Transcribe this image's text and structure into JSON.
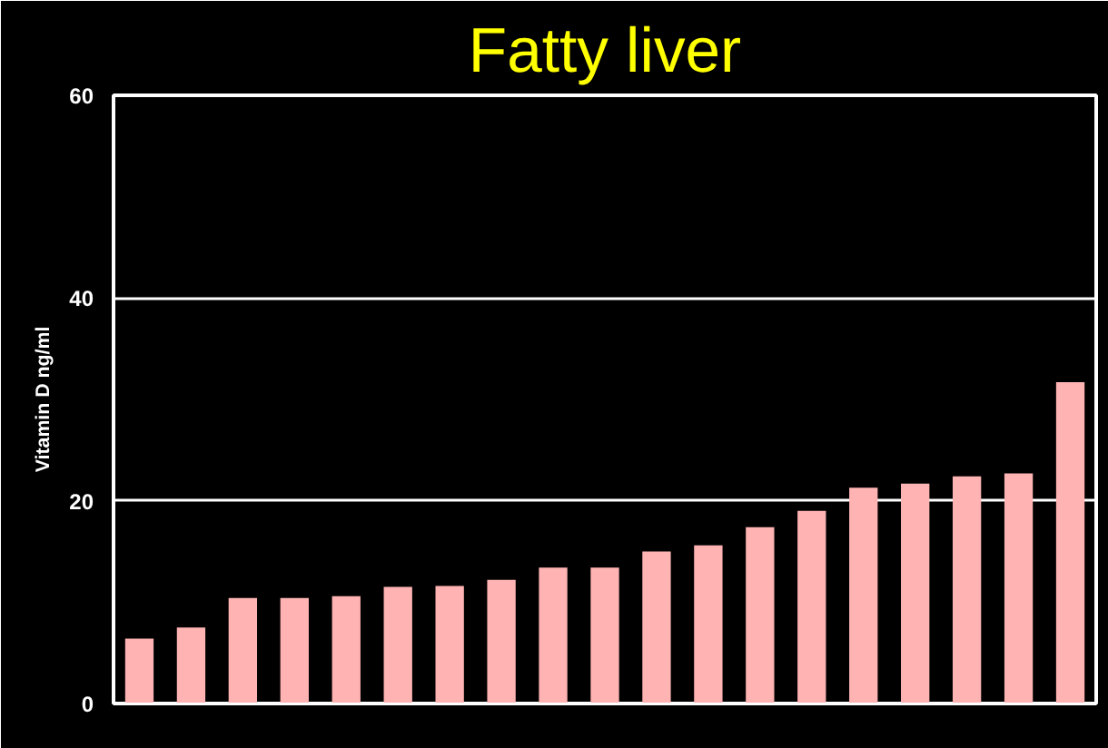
{
  "chart_data": {
    "type": "bar",
    "title": "Fatty liver",
    "ylabel": "Vitamin D ng/ml",
    "categories": [
      null,
      null,
      null,
      null,
      null,
      null,
      null,
      null,
      null,
      null,
      null,
      null,
      null,
      null,
      null,
      null,
      null,
      null,
      null
    ],
    "values": [
      6.4,
      7.5,
      10.4,
      10.4,
      10.6,
      11.5,
      11.6,
      12.2,
      13.4,
      13.4,
      15.0,
      15.6,
      17.4,
      19.0,
      21.3,
      21.7,
      22.4,
      22.7,
      31.7
    ],
    "color": "#ffb3b3",
    "ylim": [
      0,
      60
    ],
    "yticks": [
      0,
      20,
      40,
      60
    ],
    "grid": "y"
  }
}
